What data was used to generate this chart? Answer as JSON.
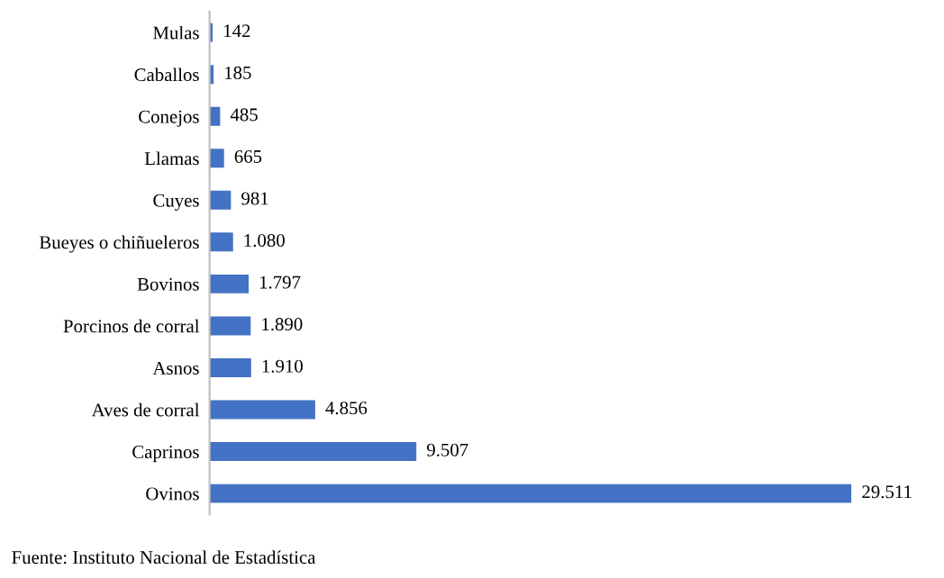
{
  "chart_data": {
    "type": "bar",
    "orientation": "horizontal",
    "categories": [
      "Mulas",
      "Caballos",
      "Conejos",
      "Llamas",
      "Cuyes",
      "Bueyes o chiñueleros",
      "Bovinos",
      "Porcinos de corral",
      "Asnos",
      "Aves de corral",
      "Caprinos",
      "Ovinos"
    ],
    "values": [
      142,
      185,
      485,
      665,
      981,
      1080,
      1797,
      1890,
      1910,
      4856,
      9507,
      29511
    ],
    "value_labels": [
      "142",
      "185",
      "485",
      "665",
      "981",
      "1.080",
      "1.797",
      "1.890",
      "1.910",
      "4.856",
      "9.507",
      "29.511"
    ],
    "color": "#4472c4",
    "annotations": [
      "Fuente: Instituto Nacional de Estadística"
    ]
  }
}
